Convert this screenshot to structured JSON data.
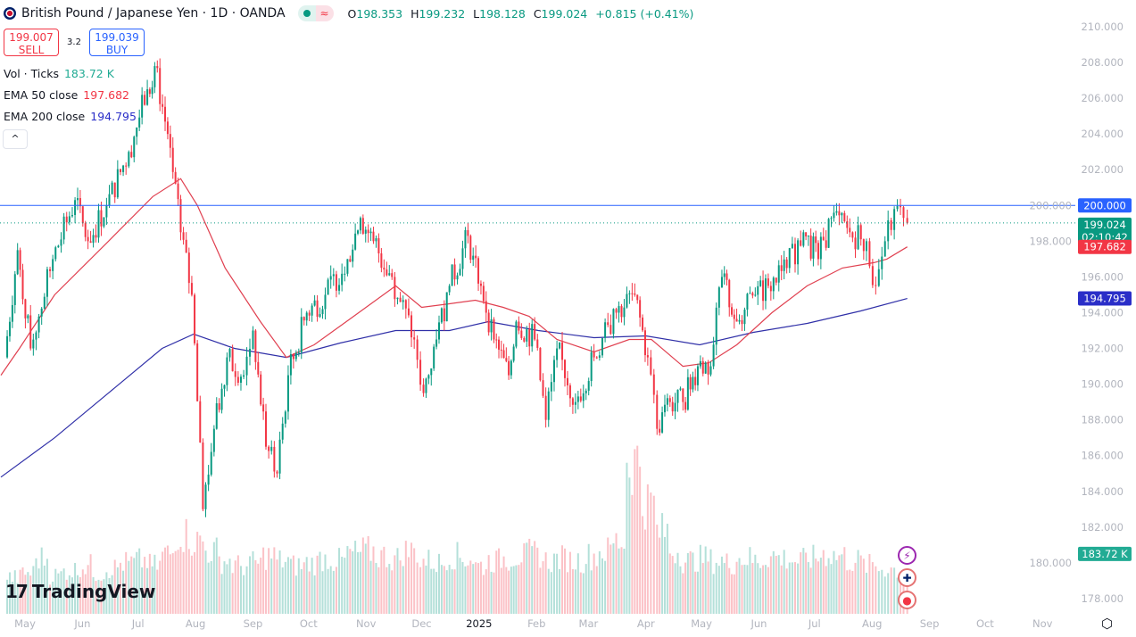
{
  "header": {
    "title": "British Pound / Japanese Yen · 1D · OANDA",
    "ohlc": {
      "o_label": "O",
      "o": "198.353",
      "h_label": "H",
      "h": "199.232",
      "l_label": "L",
      "l": "198.128",
      "c_label": "C",
      "c": "199.024",
      "change": "+0.815 (+0.41%)"
    },
    "market_status_icons": [
      "market-open-dot-icon",
      "delayed-data-wave-icon"
    ]
  },
  "trade": {
    "sell_price": "199.007",
    "sell_label": "SELL",
    "spread": "3.2",
    "buy_price": "199.039",
    "buy_label": "BUY"
  },
  "indicators": [
    {
      "name": "Vol · Ticks",
      "value": "183.72 K",
      "color": "#22ab94"
    },
    {
      "name": "EMA 50 close",
      "value": "197.682",
      "color": "#f23645"
    },
    {
      "name": "EMA 200 close",
      "value": "194.795",
      "color": "#2a2ec8"
    }
  ],
  "collapse_label": "^",
  "branding": "TradingView",
  "colors": {
    "up": "#089981",
    "down": "#f23645",
    "ema50": "#e04050",
    "ema200": "#3030a8",
    "level": "#2962ff",
    "axis_text": "#b2b5be"
  },
  "chart_data": {
    "type": "candlestick",
    "title": "British Pound / Japanese Yen · 1D · OANDA",
    "ylim": [
      177.5,
      211
    ],
    "y_ticks": [
      "210.000",
      "208.000",
      "206.000",
      "204.000",
      "202.000",
      "200.000",
      "198.000",
      "196.000",
      "194.000",
      "192.000",
      "190.000",
      "188.000",
      "186.000",
      "184.000",
      "182.000",
      "180.000",
      "178.000"
    ],
    "x_ticks": [
      {
        "label": "May",
        "date": "2024-05-01"
      },
      {
        "label": "Jun",
        "date": "2024-06-01"
      },
      {
        "label": "Jul",
        "date": "2024-07-01"
      },
      {
        "label": "Aug",
        "date": "2024-08-01"
      },
      {
        "label": "Sep",
        "date": "2024-09-01"
      },
      {
        "label": "Oct",
        "date": "2024-10-01"
      },
      {
        "label": "Nov",
        "date": "2024-11-01"
      },
      {
        "label": "Dec",
        "date": "2024-12-01"
      },
      {
        "label": "2025",
        "date": "2025-01-01"
      },
      {
        "label": "Feb",
        "date": "2025-02-01"
      },
      {
        "label": "Mar",
        "date": "2025-03-01"
      },
      {
        "label": "Apr",
        "date": "2025-04-01"
      },
      {
        "label": "May",
        "date": "2025-05-01"
      },
      {
        "label": "Jun",
        "date": "2025-06-01"
      },
      {
        "label": "Jul",
        "date": "2025-07-01"
      },
      {
        "label": "Aug",
        "date": "2025-08-01"
      },
      {
        "label": "Sep",
        "date": "2025-09-01"
      },
      {
        "label": "Oct",
        "date": "2025-10-01"
      },
      {
        "label": "Nov",
        "date": "2025-11-01"
      }
    ],
    "xlim": [
      "2024-04-19",
      "2025-11-19"
    ],
    "close_path": [
      [
        "2024-04-20",
        191.5
      ],
      [
        "2024-04-27",
        197.5
      ],
      [
        "2024-05-04",
        192.0
      ],
      [
        "2024-05-16",
        197.0
      ],
      [
        "2024-05-28",
        200.3
      ],
      [
        "2024-06-04",
        198.0
      ],
      [
        "2024-06-14",
        200.0
      ],
      [
        "2024-06-26",
        203.0
      ],
      [
        "2024-07-06",
        206.5
      ],
      [
        "2024-07-10",
        207.8
      ],
      [
        "2024-07-17",
        204.0
      ],
      [
        "2024-07-24",
        198.5
      ],
      [
        "2024-07-30",
        195.0
      ],
      [
        "2024-08-05",
        183.0
      ],
      [
        "2024-08-11",
        187.5
      ],
      [
        "2024-08-18",
        191.5
      ],
      [
        "2024-08-27",
        190.5
      ],
      [
        "2024-09-01",
        193.0
      ],
      [
        "2024-09-08",
        186.5
      ],
      [
        "2024-09-14",
        185.0
      ],
      [
        "2024-09-20",
        190.5
      ],
      [
        "2024-09-30",
        194.0
      ],
      [
        "2024-10-10",
        195.0
      ],
      [
        "2024-10-22",
        197.0
      ],
      [
        "2024-10-29",
        199.3
      ],
      [
        "2024-11-05",
        198.0
      ],
      [
        "2024-11-15",
        196.0
      ],
      [
        "2024-11-27",
        192.5
      ],
      [
        "2024-12-02",
        189.5
      ],
      [
        "2024-12-09",
        192.5
      ],
      [
        "2024-12-16",
        195.5
      ],
      [
        "2024-12-26",
        198.3
      ],
      [
        "2025-01-02",
        195.5
      ],
      [
        "2025-01-09",
        192.5
      ],
      [
        "2025-01-17",
        190.5
      ],
      [
        "2025-01-21",
        193.5
      ],
      [
        "2025-01-31",
        192.5
      ],
      [
        "2025-02-06",
        188.0
      ],
      [
        "2025-02-12",
        192.0
      ],
      [
        "2025-02-22",
        189.0
      ],
      [
        "2025-03-04",
        191.5
      ],
      [
        "2025-03-16",
        194.0
      ],
      [
        "2025-03-26",
        195.0
      ],
      [
        "2025-04-02",
        191.5
      ],
      [
        "2025-04-07",
        187.5
      ],
      [
        "2025-04-14",
        189.0
      ],
      [
        "2025-04-21",
        189.0
      ],
      [
        "2025-04-29",
        191.0
      ],
      [
        "2025-05-06",
        191.0
      ],
      [
        "2025-05-12",
        196.0
      ],
      [
        "2025-05-20",
        193.5
      ],
      [
        "2025-05-30",
        195.0
      ],
      [
        "2025-06-06",
        195.5
      ],
      [
        "2025-06-16",
        196.5
      ],
      [
        "2025-06-25",
        198.5
      ],
      [
        "2025-07-03",
        197.0
      ],
      [
        "2025-07-10",
        199.3
      ],
      [
        "2025-07-20",
        198.5
      ],
      [
        "2025-07-29",
        198.0
      ],
      [
        "2025-08-03",
        195.5
      ],
      [
        "2025-08-08",
        198.0
      ],
      [
        "2025-08-13",
        199.8
      ],
      [
        "2025-08-18",
        199.3
      ],
      [
        "2025-08-20",
        199.024
      ]
    ],
    "volume_k": [
      150,
      170,
      230,
      160,
      180,
      200,
      170,
      190,
      210,
      220,
      200,
      250,
      330,
      300,
      260,
      220,
      200,
      210,
      240,
      220,
      200,
      210,
      230,
      220,
      250,
      260,
      240,
      230,
      260,
      220,
      210,
      240,
      230,
      200,
      220,
      230,
      240,
      250,
      220,
      230,
      220,
      240,
      260,
      300,
      630,
      460,
      340,
      260,
      220,
      230,
      220,
      210,
      230,
      220,
      240,
      230,
      220,
      230,
      250,
      240,
      220,
      200,
      190,
      183.72
    ],
    "series": [
      {
        "name": "EMA 50 close",
        "points": [
          [
            "2024-04-18",
            190.5
          ],
          [
            "2024-04-28",
            192.0
          ],
          [
            "2024-05-17",
            195.0
          ],
          [
            "2024-06-15",
            198.0
          ],
          [
            "2024-07-09",
            200.5
          ],
          [
            "2024-07-24",
            201.5
          ],
          [
            "2024-08-02",
            200.0
          ],
          [
            "2024-08-17",
            196.5
          ],
          [
            "2024-09-05",
            193.5
          ],
          [
            "2024-09-19",
            191.5
          ],
          [
            "2024-10-04",
            192.2
          ],
          [
            "2024-10-28",
            194.0
          ],
          [
            "2024-11-17",
            195.5
          ],
          [
            "2024-12-01",
            194.3
          ],
          [
            "2024-12-16",
            194.5
          ],
          [
            "2024-12-30",
            194.7
          ],
          [
            "2025-01-14",
            194.3
          ],
          [
            "2025-01-28",
            193.8
          ],
          [
            "2025-02-12",
            192.5
          ],
          [
            "2025-03-04",
            191.8
          ],
          [
            "2025-03-23",
            192.5
          ],
          [
            "2025-04-04",
            192.5
          ],
          [
            "2025-04-21",
            191.0
          ],
          [
            "2025-05-05",
            191.2
          ],
          [
            "2025-05-20",
            192.2
          ],
          [
            "2025-06-08",
            194.0
          ],
          [
            "2025-06-27",
            195.5
          ],
          [
            "2025-07-16",
            196.5
          ],
          [
            "2025-08-02",
            196.8
          ],
          [
            "2025-08-09",
            197.0
          ],
          [
            "2025-08-20",
            197.682
          ]
        ]
      },
      {
        "name": "EMA 200 close",
        "points": [
          [
            "2024-04-18",
            184.8
          ],
          [
            "2024-05-17",
            187.0
          ],
          [
            "2024-06-15",
            189.5
          ],
          [
            "2024-07-14",
            192.0
          ],
          [
            "2024-07-31",
            192.8
          ],
          [
            "2024-08-22",
            192.0
          ],
          [
            "2024-09-19",
            191.5
          ],
          [
            "2024-10-18",
            192.3
          ],
          [
            "2024-11-17",
            193.0
          ],
          [
            "2024-12-16",
            193.0
          ],
          [
            "2025-01-06",
            193.5
          ],
          [
            "2025-02-02",
            193.0
          ],
          [
            "2025-03-04",
            192.6
          ],
          [
            "2025-04-01",
            192.7
          ],
          [
            "2025-04-30",
            192.2
          ],
          [
            "2025-05-29",
            192.9
          ],
          [
            "2025-06-27",
            193.4
          ],
          [
            "2025-07-26",
            194.1
          ],
          [
            "2025-08-20",
            194.795
          ]
        ]
      }
    ],
    "horizontal_level": {
      "value": 200.0,
      "label": "200.000"
    },
    "price_labels": [
      {
        "value": 199.024,
        "label": "199.024",
        "sub": "02:10:42",
        "color": "#089981"
      },
      {
        "value": 197.682,
        "label": "197.682",
        "color": "#f23645"
      },
      {
        "value": 194.795,
        "label": "194.795",
        "color": "#2a2ec8"
      }
    ],
    "volume_label": {
      "label": "183.72 K",
      "color": "#22ab94"
    },
    "grid": false
  }
}
